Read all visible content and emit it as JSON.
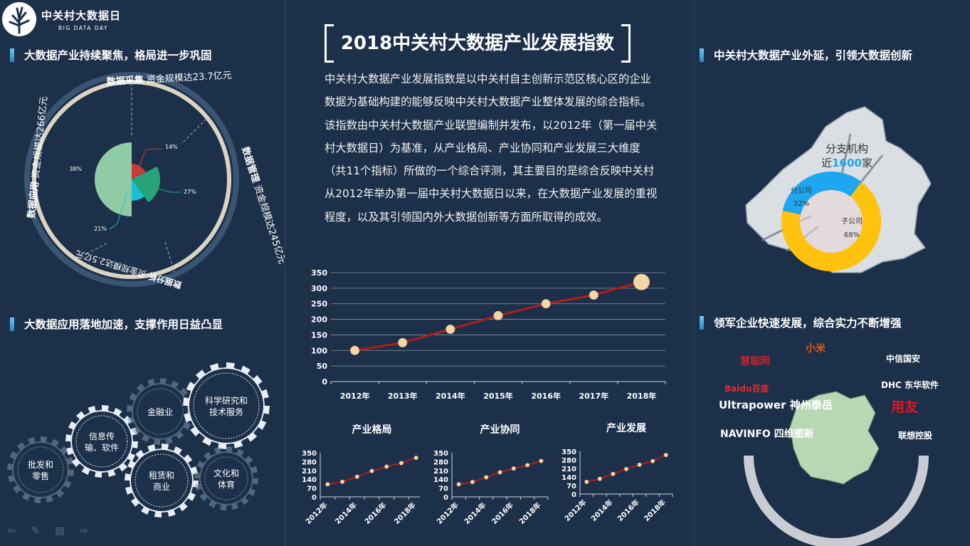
{
  "logo": {
    "title": "中关村大数据日",
    "subtitle": "BIG DATA DAY"
  },
  "sections": {
    "s1": "大数据产业持续聚焦，格局进一步巩固",
    "s2": "大数据应用落地加速，支撑作用日益凸显",
    "s3": "中关村大数据产业外延，引领大数据创新",
    "s4": "领军企业快速发展，综合实力不断增强"
  },
  "main_title": "2018中关村大数据产业发展指数",
  "intro": "中关村大数据产业发展指数是以中关村自主创新示范区核心区的企业数据为基础构建的能够反映中关村大数据产业整体发展的综合指标。该指数由中关村大数据产业联盟编制并发布，以2012年（第一届中关村大数据日）为基准，从产业格局、产业协同和产业发展三大维度（共11个指标）所做的一个综合评测，其主要目的是综合反映中关村从2012年举办第一届中关村大数据日以来，在大数据产业发展的重视程度，以及其引领国内外大数据创新等方面所取得的成效。",
  "ring_labels": [
    {
      "bold": "数据采集",
      "text": "资金规模达23.7亿元"
    },
    {
      "bold": "数据管理",
      "text": "资金规模达245亿元"
    },
    {
      "bold": "数据分析",
      "text": "资金规模达2.5亿元"
    },
    {
      "bold": "数据应用",
      "text": "资金规模达266亿元"
    }
  ],
  "gears": [
    "批发和零售",
    "信息传输、软件",
    "金融业",
    "科学研究和技术服务",
    "租赁和商业",
    "文化和体育"
  ],
  "gear_lines": [
    [
      "批发和",
      "零售"
    ],
    [
      "信息传",
      "输、软件"
    ],
    [
      "金融业"
    ],
    [
      "科学研究和",
      "技术服务"
    ],
    [
      "租赁和",
      "商业"
    ],
    [
      "文化和",
      "体育"
    ]
  ],
  "map_label": {
    "line1": "分支机构",
    "prefix": "近",
    "number": "1600",
    "suffix": "家"
  },
  "companies": [
    "慧聪网",
    "小米",
    "中信国安",
    "DHC 东华软件",
    "Baidu百度",
    "Ultrapower 神州泰岳",
    "用友",
    "NAVINFO 四维图新",
    "联想控股"
  ],
  "colors": {
    "bg": "#1c3049",
    "accent": "#2d84c4",
    "line": "#b01d1d",
    "marker": "#f5d7a6",
    "donut_blue": "#1ea7f0",
    "donut_yellow": "#ffc20e"
  },
  "chart_data": [
    {
      "type": "pie",
      "title": "",
      "categories": [
        "数据应用",
        "数据采集",
        "数据管理",
        "数据分析"
      ],
      "values": [
        38,
        14,
        27,
        21
      ],
      "labels": [
        "38%",
        "14%",
        "27%",
        "21%"
      ],
      "colors": [
        "#8fcca6",
        "#c8393b",
        "#27a379",
        "#19c1d4"
      ]
    },
    {
      "type": "line",
      "title": "",
      "x": [
        "2012年",
        "2013年",
        "2014年",
        "2015年",
        "2016年",
        "2017年",
        "2018年"
      ],
      "series": [
        {
          "values": [
            100,
            125,
            168,
            212,
            250,
            278,
            320
          ]
        }
      ],
      "ylim": [
        0,
        350
      ],
      "yticks": [
        0,
        50,
        100,
        150,
        200,
        250,
        300,
        350
      ],
      "grid": true
    },
    {
      "type": "line",
      "title": "产业格局",
      "x": [
        "2012年",
        "2013年",
        "2014年",
        "2015年",
        "2016年",
        "2017年",
        "2018年"
      ],
      "xtick_labels": [
        "2012年",
        "2014年",
        "2016年",
        "2018年"
      ],
      "series": [
        {
          "values": [
            100,
            120,
            160,
            205,
            240,
            268,
            310
          ]
        }
      ],
      "ylim": [
        0,
        350
      ],
      "yticks": [
        0,
        70,
        140,
        210,
        280,
        350
      ]
    },
    {
      "type": "line",
      "title": "产业协同",
      "x": [
        "2012年",
        "2013年",
        "2014年",
        "2015年",
        "2016年",
        "2017年",
        "2018年"
      ],
      "xtick_labels": [
        "2012年",
        "2014年",
        "2016年",
        "2018年"
      ],
      "series": [
        {
          "values": [
            100,
            118,
            155,
            195,
            225,
            252,
            285
          ]
        }
      ],
      "ylim": [
        0,
        350
      ],
      "yticks": [
        0,
        70,
        140,
        210,
        280,
        350
      ]
    },
    {
      "type": "line",
      "title": "产业发展",
      "x": [
        "2012年",
        "2013年",
        "2014年",
        "2015年",
        "2016年",
        "2017年",
        "2018年"
      ],
      "xtick_labels": [
        "2012年",
        "2014年",
        "2016年",
        "2018年"
      ],
      "series": [
        {
          "values": [
            100,
            125,
            165,
            205,
            240,
            270,
            320
          ]
        }
      ],
      "ylim": [
        0,
        350
      ],
      "yticks": [
        0,
        70,
        140,
        210,
        280,
        350
      ]
    },
    {
      "type": "pie",
      "title": "",
      "categories": [
        "分公司",
        "子公司"
      ],
      "values": [
        32,
        68
      ],
      "labels": [
        "32%",
        "68%"
      ],
      "colors": [
        "#1ea7f0",
        "#ffc20e"
      ]
    }
  ]
}
